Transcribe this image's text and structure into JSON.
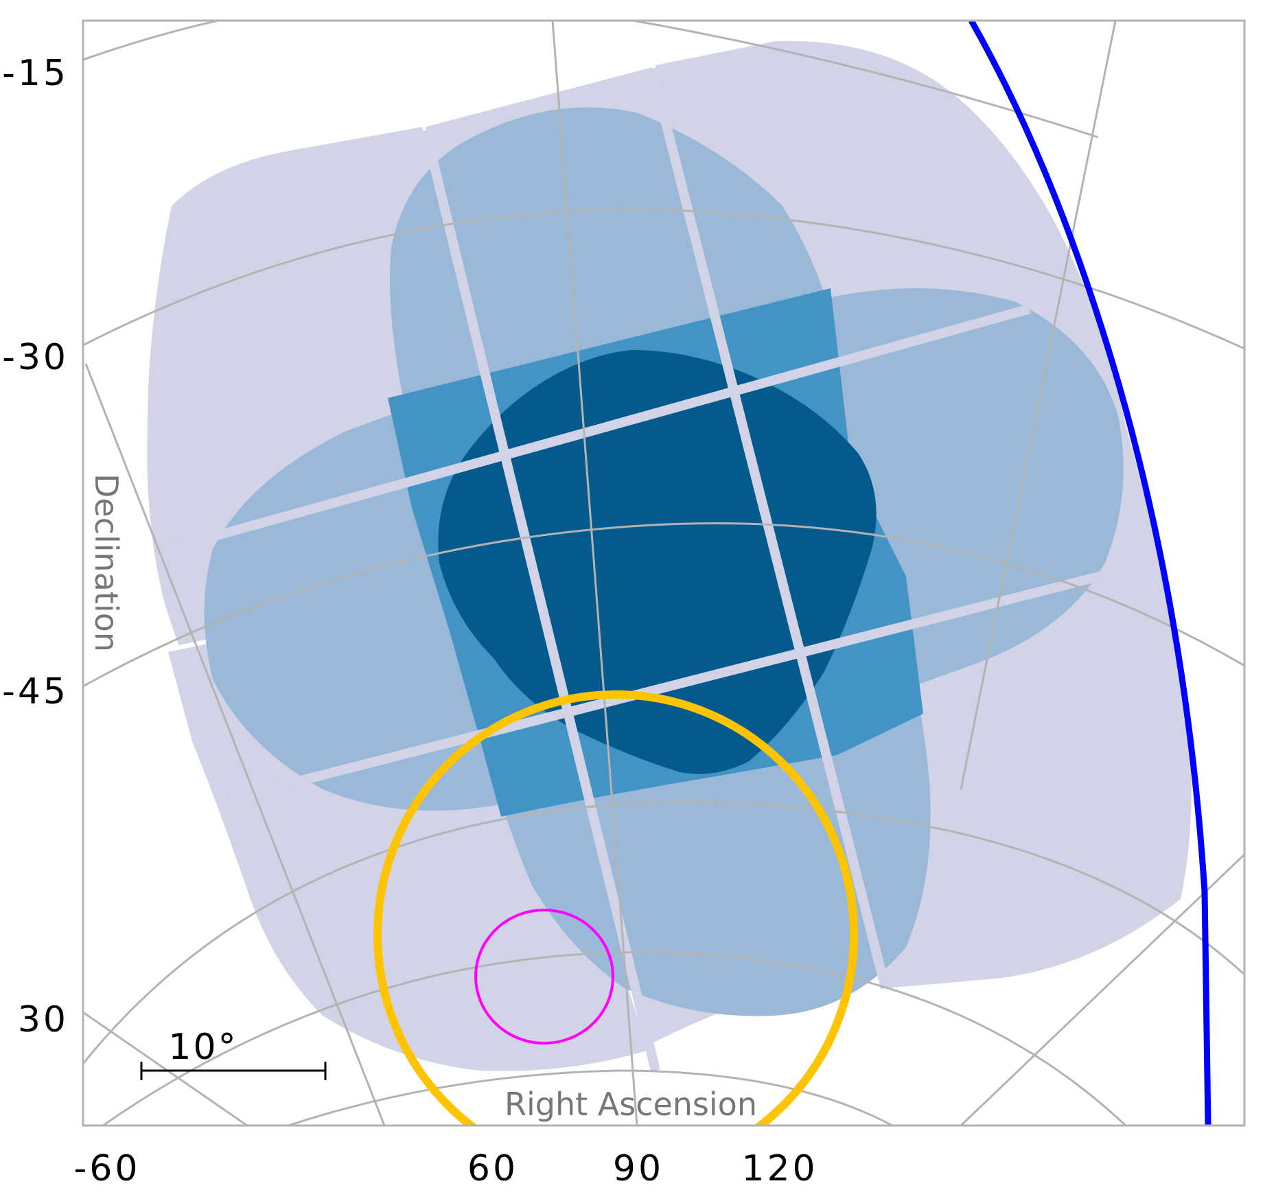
{
  "chart_data": {
    "type": "sky-map",
    "projection": "zenithal (polar) sky projection",
    "xlabel": "Right Ascension",
    "ylabel": "Declination",
    "x_tick_labels": [
      "-60",
      "60",
      "90",
      "120"
    ],
    "y_tick_labels": [
      "-15",
      "-30",
      "-45",
      "30"
    ],
    "scale_bar_label": "10°",
    "grid": true,
    "coverage_levels": [
      {
        "level": 1,
        "color": "#d3d3e7"
      },
      {
        "level": 2,
        "color": "#9ab9d8"
      },
      {
        "level": 3,
        "color": "#4394c4"
      },
      {
        "level": 4,
        "color": "#045a8d"
      }
    ],
    "overlays": [
      {
        "kind": "circle",
        "color": "#ffc400"
      },
      {
        "kind": "circle",
        "color": "#ff00ff"
      },
      {
        "kind": "arc",
        "color": "#0000ff"
      }
    ]
  }
}
